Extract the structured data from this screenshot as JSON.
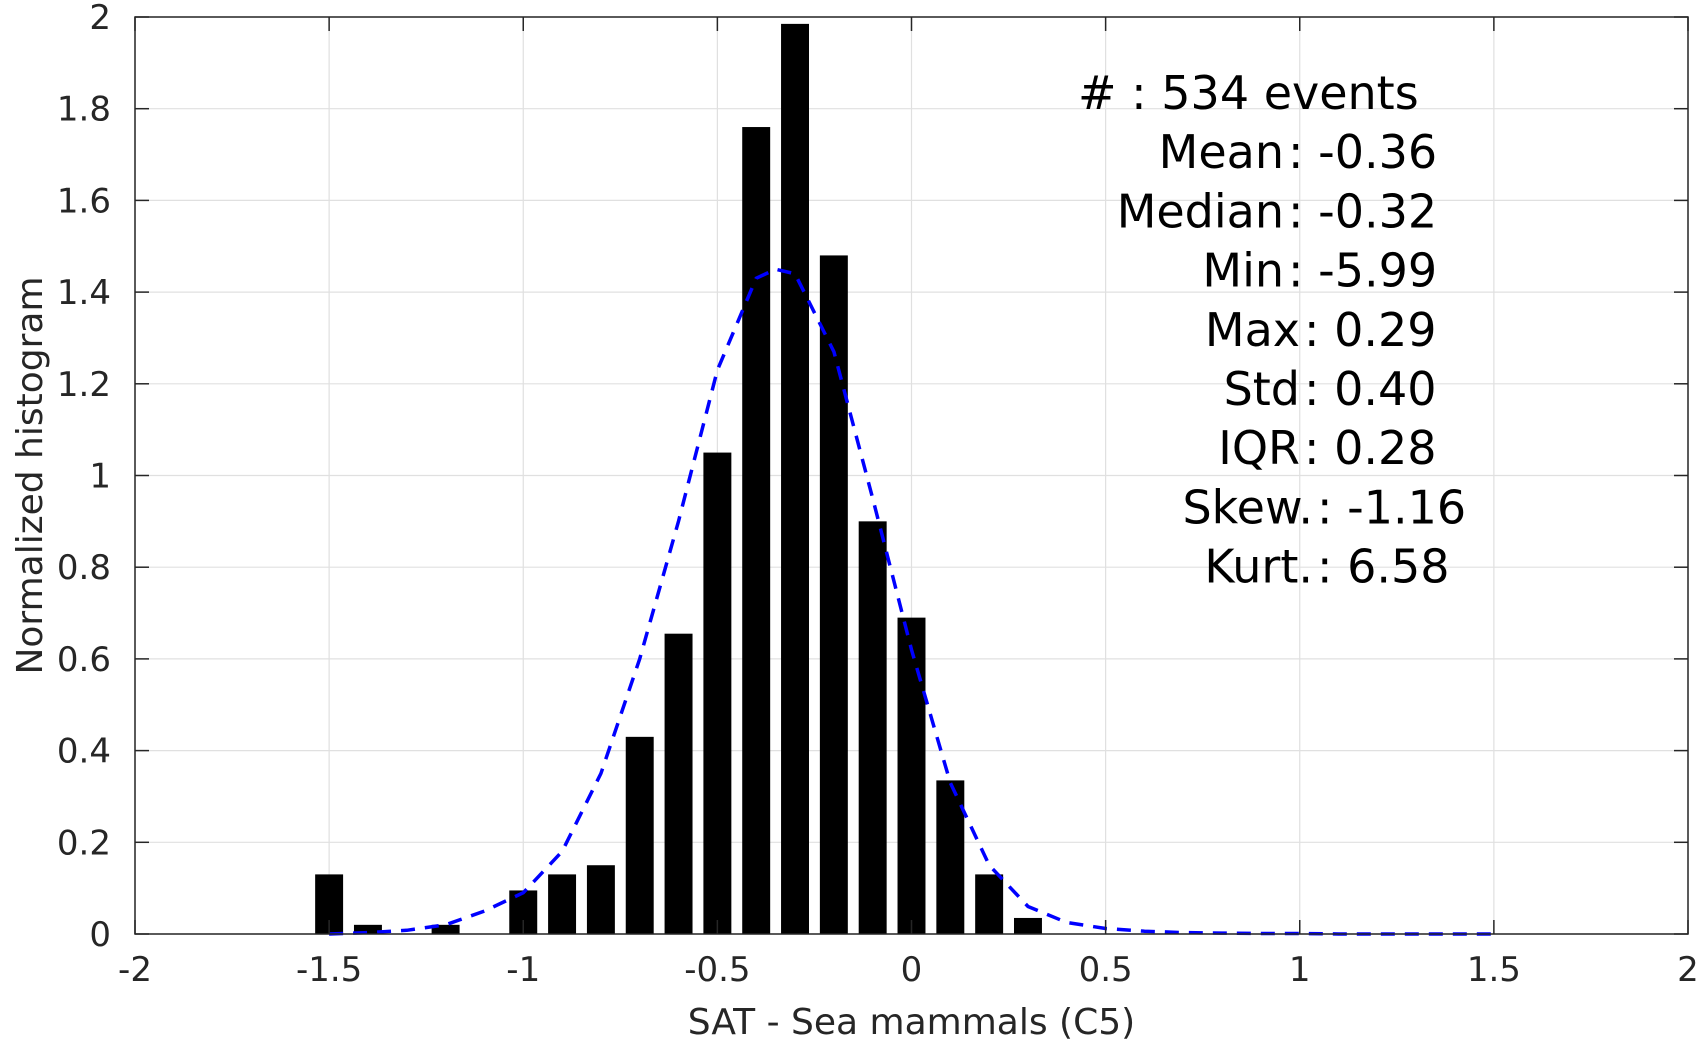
{
  "chart_data": {
    "type": "bar",
    "xlabel": "SAT - Sea mammals (C5)",
    "ylabel": "Normalized histogram",
    "xlim": [
      -2,
      2
    ],
    "ylim": [
      0,
      2
    ],
    "xticks": [
      "-2",
      "-1.5",
      "-1",
      "-0.5",
      "0",
      "0.5",
      "1",
      "1.5",
      "2"
    ],
    "yticks": [
      "0",
      "0.2",
      "0.4",
      "0.6",
      "0.8",
      "1",
      "1.2",
      "1.4",
      "1.6",
      "1.8",
      "2"
    ],
    "grid": true,
    "bin_width": 0.1,
    "bars": {
      "x": [
        -1.5,
        -1.4,
        -1.2,
        -1.0,
        -0.9,
        -0.8,
        -0.7,
        -0.6,
        -0.5,
        -0.4,
        -0.3,
        -0.2,
        -0.1,
        0.0,
        0.1,
        0.2,
        0.3
      ],
      "values": [
        0.13,
        0.02,
        0.02,
        0.095,
        0.13,
        0.15,
        0.43,
        0.655,
        1.05,
        1.76,
        1.985,
        1.48,
        0.9,
        0.69,
        0.335,
        0.13,
        0.035
      ],
      "color": "#000000"
    },
    "fit_curve": {
      "style": "dashed",
      "color": "#0000ff",
      "x": [
        -1.5,
        -1.4,
        -1.3,
        -1.2,
        -1.1,
        -1.0,
        -0.9,
        -0.8,
        -0.7,
        -0.6,
        -0.5,
        -0.4,
        -0.35,
        -0.3,
        -0.2,
        -0.1,
        0.0,
        0.1,
        0.2,
        0.3,
        0.4,
        0.5,
        0.6,
        0.7,
        0.8,
        0.9,
        1.0,
        1.1,
        1.2,
        1.3,
        1.4,
        1.5
      ],
      "y": [
        0.0,
        0.003,
        0.008,
        0.02,
        0.05,
        0.09,
        0.18,
        0.35,
        0.6,
        0.9,
        1.23,
        1.43,
        1.45,
        1.44,
        1.27,
        0.95,
        0.62,
        0.33,
        0.15,
        0.06,
        0.025,
        0.012,
        0.006,
        0.003,
        0.002,
        0.001,
        0.001,
        0.0,
        0.0,
        0.0,
        0.0,
        0.0
      ]
    },
    "annotations": [
      "#  : 534 events",
      "Mean : -0.36",
      "Median : -0.32",
      "Min : -5.99",
      "Max : 0.29",
      "Std : 0.40",
      "IQR : 0.28",
      "Skew. : -1.16",
      "Kurt. : 6.58"
    ]
  }
}
